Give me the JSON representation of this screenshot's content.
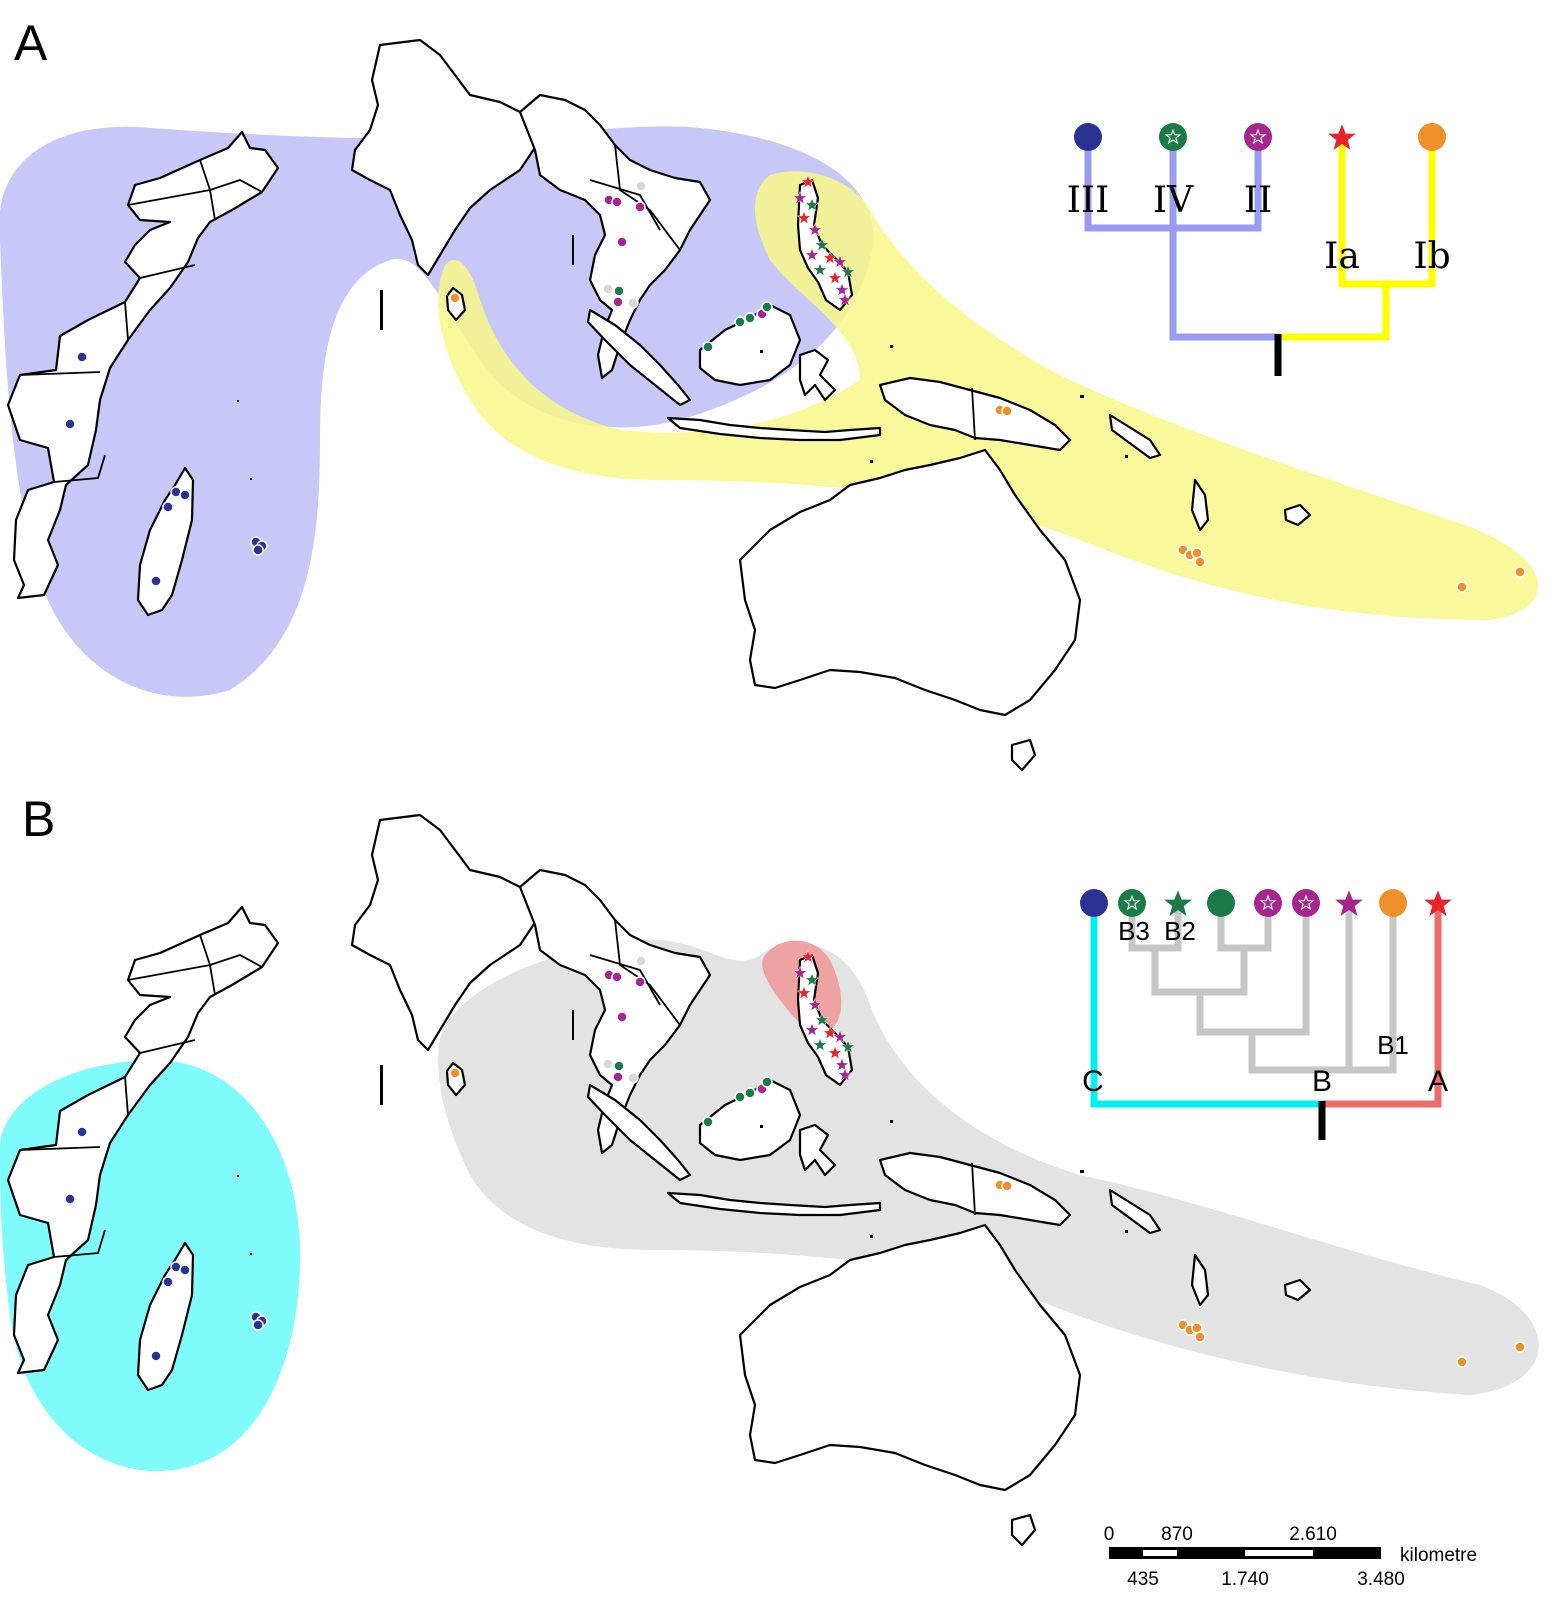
{
  "panels": [
    {
      "letter": "A",
      "clades": [
        {
          "name": "III",
          "icon": "dot-navy"
        },
        {
          "name": "IV",
          "icon": "badge-green"
        },
        {
          "name": "II",
          "icon": "badge-purple"
        },
        {
          "name": "Ia",
          "icon": "star-red"
        },
        {
          "name": "Ib",
          "icon": "dot-orange"
        }
      ],
      "range_colors": {
        "blue": "#c8c8f8",
        "yellow": "#f8f88a"
      }
    },
    {
      "letter": "B",
      "clades": [
        {
          "name": "C",
          "icon": "dot-navy"
        },
        {
          "name": "B3",
          "icon": "badge-green"
        },
        {
          "name": "B2",
          "icon": "star-green"
        },
        {
          "name": "",
          "icon": "dot-green"
        },
        {
          "name": "",
          "icon": "badge-purple"
        },
        {
          "name": "",
          "icon": "badge-purple"
        },
        {
          "name": "",
          "icon": "star-purple"
        },
        {
          "name": "B1",
          "icon": "dot-orange"
        },
        {
          "name": "A",
          "icon": "star-red"
        },
        {
          "name": "B",
          "icon": ""
        }
      ],
      "range_colors": {
        "cyan": "#80fbfb",
        "grey": "#e3e3e3",
        "red": "#f09a9a"
      }
    }
  ],
  "marker_colors": {
    "navy": "#2a3391",
    "green": "#1b7a48",
    "purple": "#a5268c",
    "red": "#e8232a",
    "orange": "#f0902a",
    "light_grey": "#d8d8d8"
  },
  "tree_colors": {
    "panel_a": {
      "left": "#9a9cf2",
      "right": "#ffff00",
      "root": "#000000"
    },
    "panel_b": {
      "left": "#00f0f0",
      "middle": "#c6c6c6",
      "right": "#ee6b6b",
      "root": "#000000"
    }
  },
  "scale_bar": {
    "top_labels": [
      "0",
      "870",
      "2.610"
    ],
    "bottom_labels": [
      "435",
      "1.740",
      "3.480"
    ],
    "unit": "kilometre"
  }
}
